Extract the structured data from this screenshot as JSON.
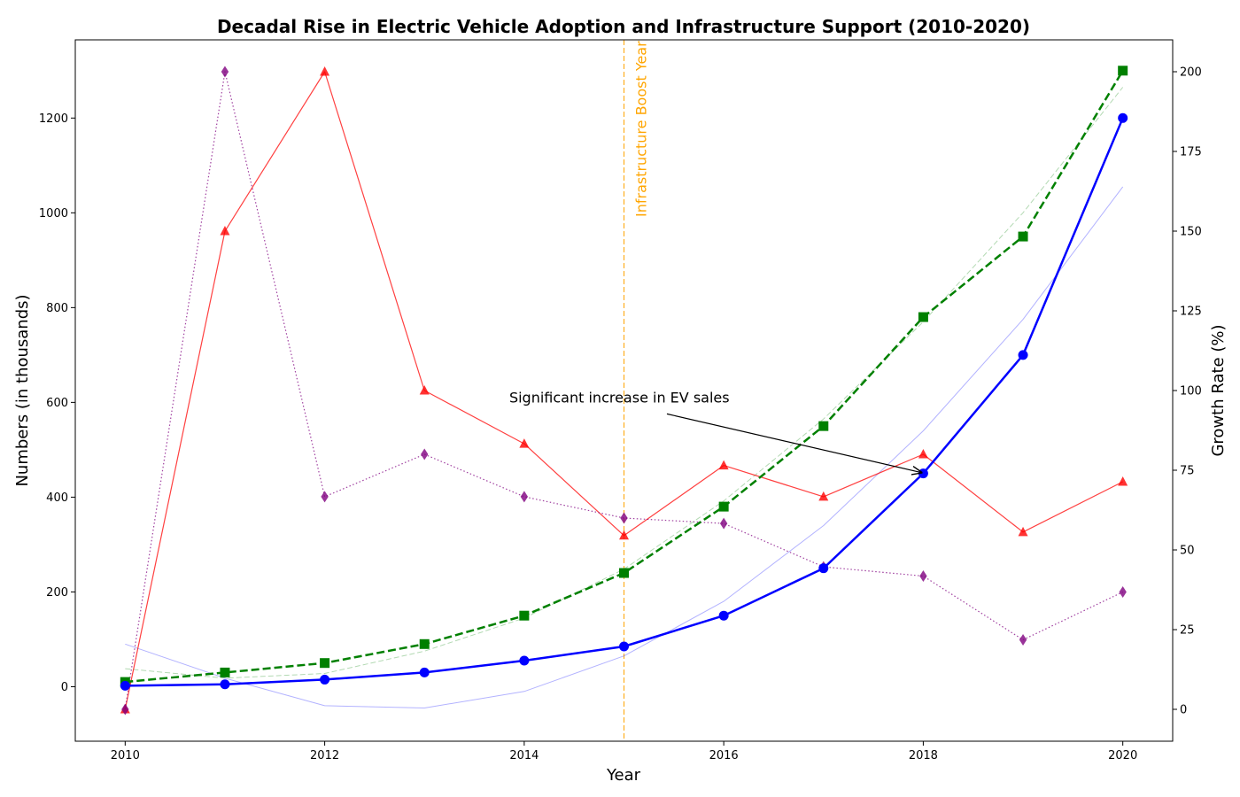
{
  "chart_data": {
    "type": "line",
    "title": "Decadal Rise in Electric Vehicle Adoption and Infrastructure Support (2010-2020)",
    "xlabel": "Year",
    "ylabel": "Numbers (in thousands)",
    "y2label": "Growth Rate (%)",
    "x": [
      2010,
      2011,
      2012,
      2013,
      2014,
      2015,
      2016,
      2017,
      2018,
      2019,
      2020
    ],
    "xlim": [
      2009.5,
      2020.5
    ],
    "ylim": [
      -115,
      1365
    ],
    "y2lim": [
      -10,
      210
    ],
    "x_ticks": [
      2010,
      2012,
      2014,
      2016,
      2018,
      2020
    ],
    "y_ticks": [
      0,
      200,
      400,
      600,
      800,
      1000,
      1200
    ],
    "y2_ticks": [
      0,
      25,
      50,
      75,
      100,
      125,
      150,
      175,
      200
    ],
    "grid": false,
    "legend": "none",
    "series": [
      {
        "axis": "left",
        "color": "#0000FF",
        "style": "solid",
        "marker": "circle",
        "width": 2.5,
        "values": [
          2,
          5,
          15,
          30,
          55,
          85,
          150,
          250,
          450,
          700,
          1200
        ]
      },
      {
        "axis": "left",
        "color": "#008000",
        "style": "dashed",
        "marker": "square",
        "width": 2.5,
        "values": [
          10,
          30,
          50,
          90,
          150,
          240,
          380,
          550,
          780,
          950,
          1300
        ]
      },
      {
        "axis": "right",
        "color": "#FF0000",
        "style": "solid",
        "marker": "triangle",
        "width": 1.2,
        "opacity": 0.75,
        "values": [
          0,
          150,
          200,
          100,
          83.3,
          54.5,
          76.5,
          66.7,
          80,
          55.6,
          71.4
        ]
      },
      {
        "axis": "right",
        "color": "#800080",
        "style": "dotted",
        "marker": "diamond",
        "width": 1.2,
        "opacity": 0.75,
        "values": [
          0,
          200,
          66.7,
          80,
          66.7,
          60,
          58.3,
          44.7,
          41.8,
          21.8,
          36.8
        ]
      },
      {
        "axis": "left",
        "color": "#0000FF",
        "style": "solid",
        "marker": "none",
        "width": 1,
        "opacity": 0.3,
        "values": [
          90,
          18,
          -40,
          -45,
          -10,
          65,
          180,
          340,
          540,
          775,
          1055
        ]
      },
      {
        "axis": "left",
        "color": "#008000",
        "style": "dashed",
        "marker": "none",
        "width": 1,
        "opacity": 0.3,
        "values": [
          38,
          18,
          28,
          75,
          145,
          248,
          392,
          565,
          770,
          1000,
          1265
        ]
      }
    ],
    "annotations": [
      {
        "text": "Significant increase in EV sales",
        "text_x": 2013.85,
        "text_y": 600,
        "arrow_to_x": 2018,
        "arrow_to_y": 450
      },
      {
        "type": "vline",
        "x": 2015,
        "color": "#FFA500",
        "text": "Infrastructure Boost Year"
      }
    ]
  }
}
